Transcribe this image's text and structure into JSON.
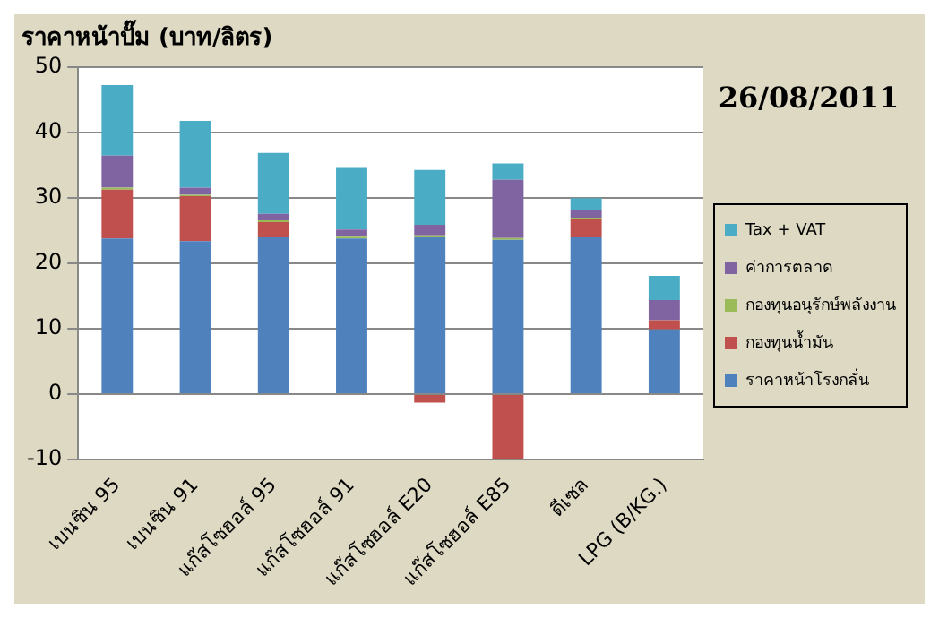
{
  "chart_data": {
    "type": "bar",
    "title": "ราคาหน้าปั๊ม (บาท/ลิตร)",
    "annotations": [
      "26/08/2011"
    ],
    "categories": [
      "เบนซิน 95",
      "เบนซิน 91",
      "แก๊สโซฮอล์ 95",
      "แก๊สโซฮอล์ 91",
      "แก๊สโซฮอล์ E20",
      "แก๊สโซฮอล์ E85",
      "ดีเซล",
      "LPG (B/KG.)"
    ],
    "stacked": true,
    "series": [
      {
        "name": "ราคาหน้าโรงกลั่น",
        "color": "#4f81bd",
        "values": [
          23.8,
          23.4,
          24.0,
          23.8,
          24.0,
          23.6,
          24.0,
          9.9
        ]
      },
      {
        "name": "กองทุนน้ำมัน",
        "color": "#c0504d",
        "values": [
          7.5,
          6.9,
          2.3,
          0,
          -1.3,
          -10,
          2.8,
          1.4
        ]
      },
      {
        "name": "กองทุนอนุรักษ์พลังงาน",
        "color": "#9bbb59",
        "values": [
          0.3,
          0.2,
          0.3,
          0.3,
          0.3,
          0.3,
          0.2,
          0
        ]
      },
      {
        "name": "ค่าการตลาด",
        "color": "#8064a2",
        "values": [
          4.9,
          1.1,
          1.0,
          1.1,
          1.6,
          8.9,
          1.1,
          3.1
        ]
      },
      {
        "name": "Tax + VAT",
        "color": "#4bacc6",
        "values": [
          10.8,
          10.2,
          9.3,
          9.4,
          8.4,
          2.5,
          1.9,
          3.7
        ]
      }
    ],
    "ylim": [
      -10,
      50
    ],
    "yticks": [
      -10,
      0,
      10,
      20,
      30,
      40,
      50
    ],
    "grid": "y",
    "legend": "right"
  }
}
